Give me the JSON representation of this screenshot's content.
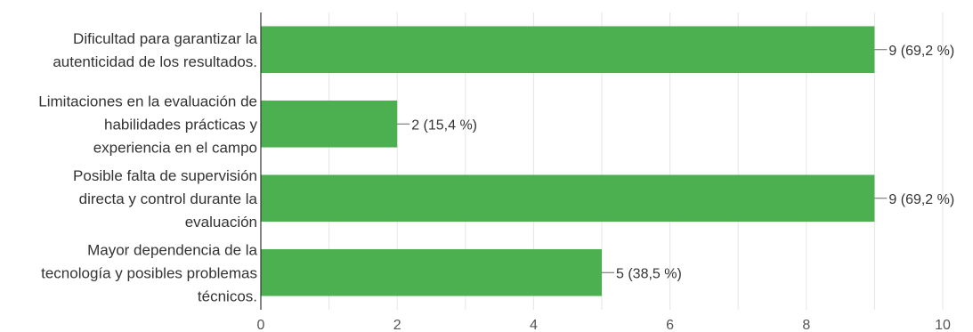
{
  "chart_data": {
    "type": "bar",
    "orientation": "horizontal",
    "categories": [
      [
        "Dificultad para garantizar la",
        "autenticidad de los resultados."
      ],
      [
        "Limitaciones en la evaluación de",
        "habilidades prácticas y",
        "experiencia en el campo"
      ],
      [
        "Posible falta de supervisión",
        "directa y control durante la",
        "evaluación"
      ],
      [
        "Mayor dependencia de la",
        "tecnología y posibles problemas",
        "técnicos."
      ]
    ],
    "values": [
      9,
      2,
      9,
      5
    ],
    "data_labels": [
      "9 (69,2 %)",
      "2 (15,4 %)",
      "9 (69,2 %)",
      "5 (38,5 %)"
    ],
    "xlim": [
      0,
      10
    ],
    "xticks": [
      0,
      2,
      4,
      6,
      8,
      10
    ],
    "tick_labels": [
      "0",
      "2",
      "4",
      "6",
      "8",
      "10"
    ],
    "grid": true,
    "bar_color": "#4caf50",
    "grid_color": "#e6e6e6",
    "axis_color": "#333333",
    "title": "",
    "xlabel": "",
    "ylabel": ""
  }
}
